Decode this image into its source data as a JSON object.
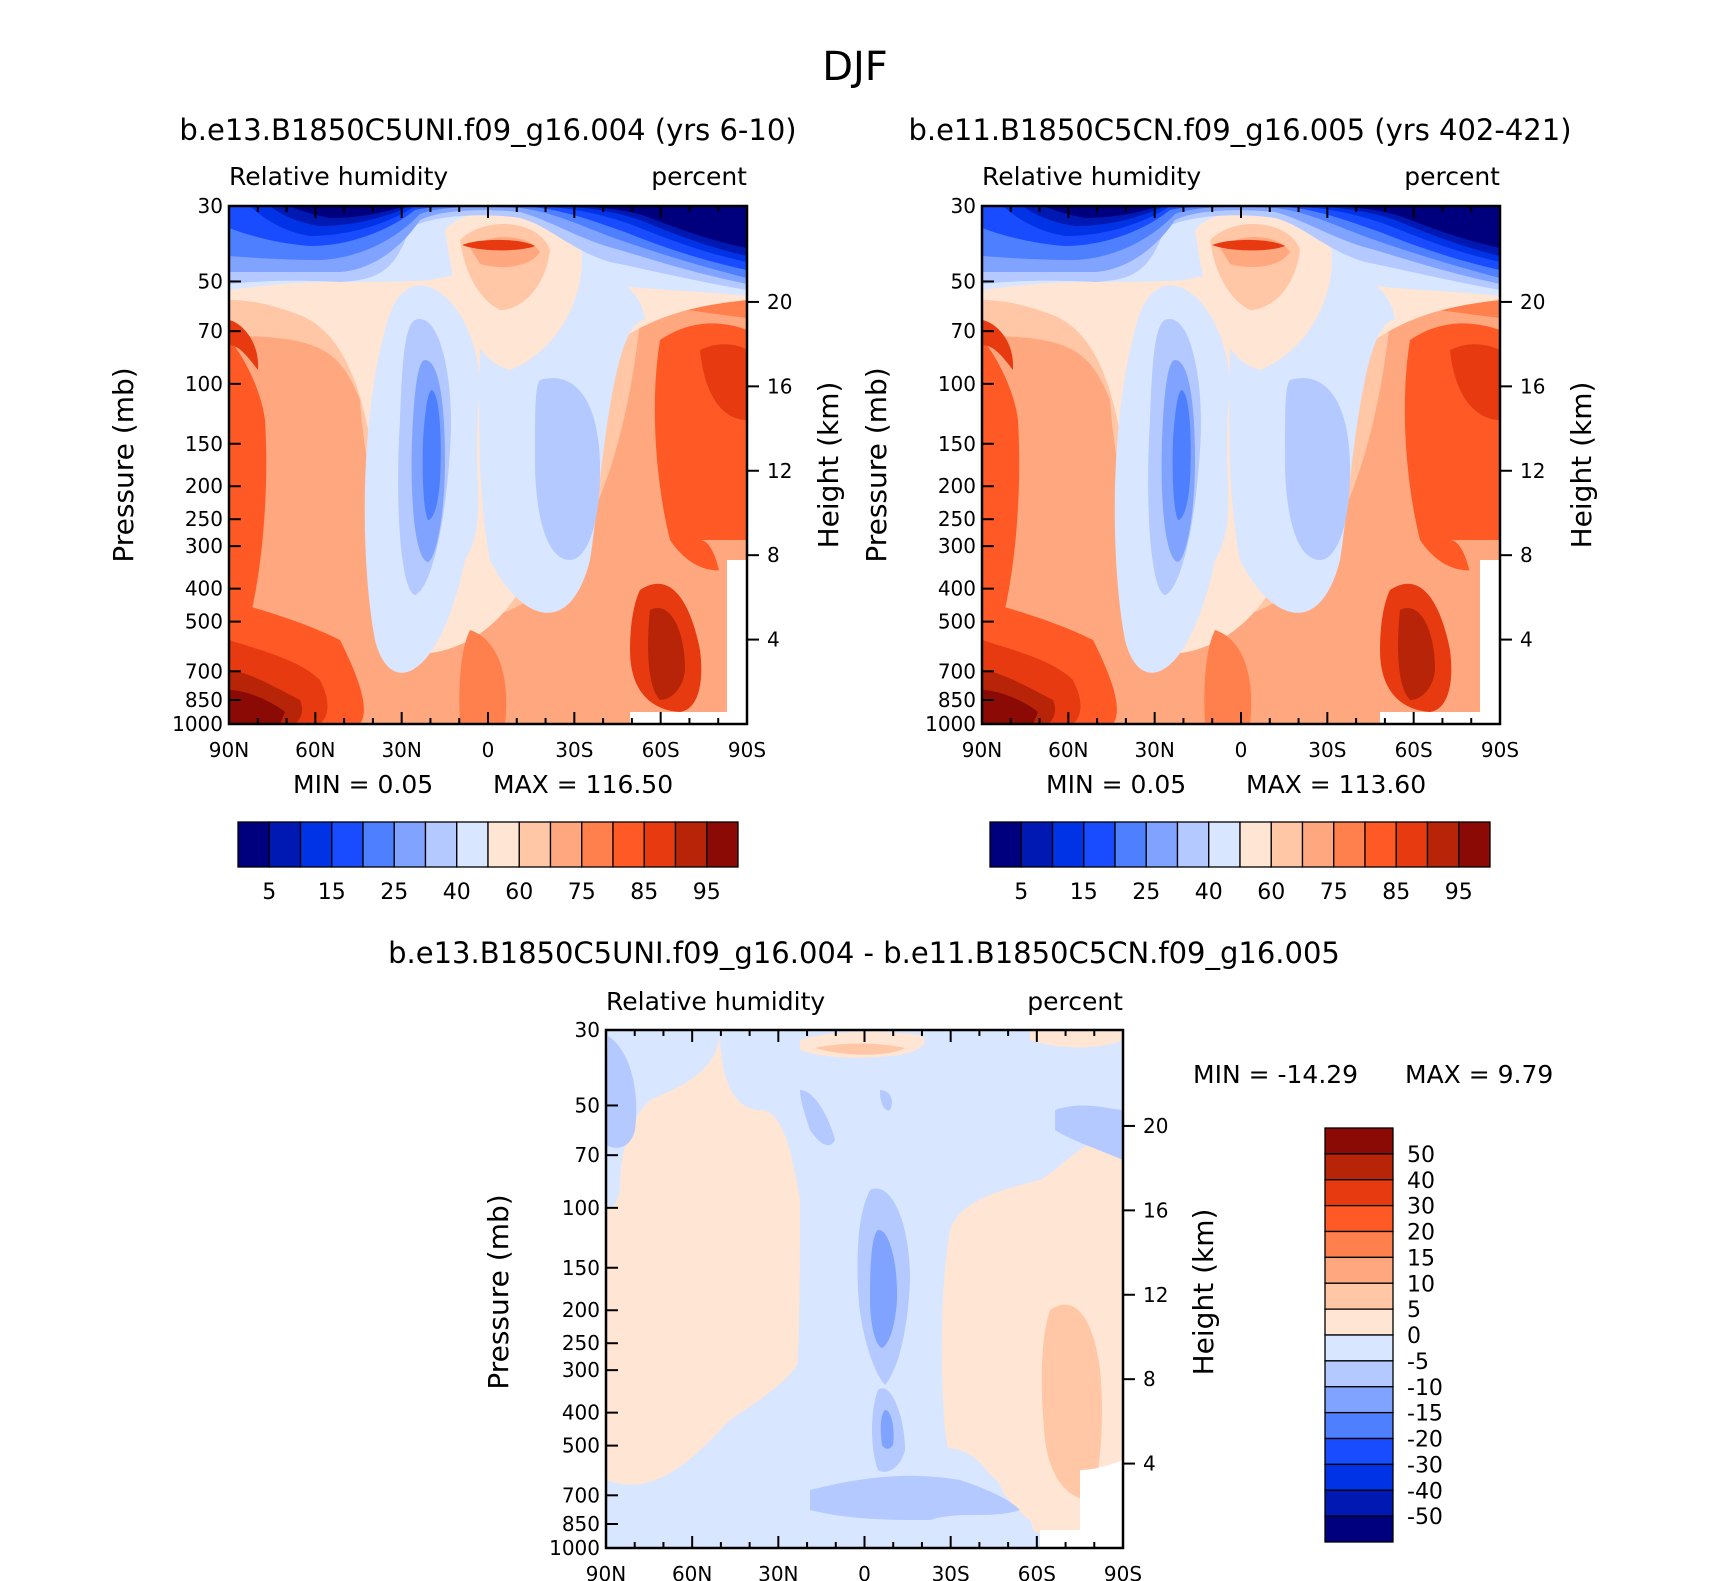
{
  "figure": {
    "title": "DJF",
    "pressure_ticks": [
      30,
      50,
      70,
      100,
      150,
      200,
      250,
      300,
      400,
      500,
      700,
      850,
      1000
    ],
    "pressure_labels": [
      "30",
      "50",
      "70",
      "100",
      "150",
      "200",
      "250",
      "300",
      "400",
      "500",
      "700",
      "850",
      "1000"
    ],
    "height_ticks": [
      20,
      16,
      12,
      8,
      4
    ],
    "height_labels": [
      "20",
      "16",
      "12",
      "8",
      "4"
    ],
    "lat_labels": [
      "90N",
      "60N",
      "30N",
      "0",
      "30S",
      "60S",
      "90S"
    ]
  },
  "chart_data": [
    {
      "type": "heatmap",
      "title": "b.e13.B1850C5UNI.f09_g16.004 (yrs 6-10)",
      "left_label": "Relative humidity",
      "right_label": "percent",
      "ylabel": "Pressure (mb)",
      "ylabel_right": "Height (km)",
      "xlim": [
        90,
        -90
      ],
      "ylim": [
        1000,
        30
      ],
      "min_text": "MIN =    0.05",
      "max_text": "MAX = 116.50",
      "colorbar_levels": [
        5,
        10,
        15,
        20,
        25,
        30,
        40,
        50,
        60,
        70,
        75,
        80,
        85,
        90,
        95
      ],
      "colorbar_labels": [
        "5",
        "15",
        "25",
        "40",
        "60",
        "75",
        "85",
        "95"
      ],
      "colors": [
        "#00007f",
        "#0019b2",
        "#0032e6",
        "#1a4cff",
        "#4d7fff",
        "#7fa3ff",
        "#b3c9ff",
        "#d9e6ff",
        "#ffe5d4",
        "#ffc7a6",
        "#ffa87f",
        "#ff7f4d",
        "#ff5a26",
        "#e83a10",
        "#b82408",
        "#8b0a05"
      ]
    },
    {
      "type": "heatmap",
      "title": "b.e11.B1850C5CN.f09_g16.005 (yrs 402-421)",
      "left_label": "Relative humidity",
      "right_label": "percent",
      "ylabel": "Pressure (mb)",
      "ylabel_right": "Height (km)",
      "xlim": [
        90,
        -90
      ],
      "ylim": [
        1000,
        30
      ],
      "min_text": "MIN =    0.05",
      "max_text": "MAX = 113.60",
      "colorbar_levels": [
        5,
        10,
        15,
        20,
        25,
        30,
        40,
        50,
        60,
        70,
        75,
        80,
        85,
        90,
        95
      ],
      "colorbar_labels": [
        "5",
        "15",
        "25",
        "40",
        "60",
        "75",
        "85",
        "95"
      ],
      "colors": [
        "#00007f",
        "#0019b2",
        "#0032e6",
        "#1a4cff",
        "#4d7fff",
        "#7fa3ff",
        "#b3c9ff",
        "#d9e6ff",
        "#ffe5d4",
        "#ffc7a6",
        "#ffa87f",
        "#ff7f4d",
        "#ff5a26",
        "#e83a10",
        "#b82408",
        "#8b0a05"
      ]
    },
    {
      "type": "heatmap",
      "title": "b.e13.B1850C5UNI.f09_g16.004 - b.e11.B1850C5CN.f09_g16.005",
      "left_label": "Relative humidity",
      "right_label": "percent",
      "ylabel": "Pressure (mb)",
      "ylabel_right": "Height (km)",
      "xlim": [
        90,
        -90
      ],
      "ylim": [
        1000,
        30
      ],
      "min_text": "MIN = -14.29",
      "max_text": "MAX =    9.79",
      "colorbar_levels": [
        -50,
        -40,
        -30,
        -20,
        -15,
        -10,
        -5,
        0,
        5,
        10,
        15,
        20,
        30,
        40,
        50
      ],
      "colorbar_labels": [
        "50",
        "40",
        "30",
        "20",
        "15",
        "10",
        "5",
        "0",
        "-5",
        "-10",
        "-15",
        "-20",
        "-30",
        "-40",
        "-50"
      ],
      "colors": [
        "#00007f",
        "#0019b2",
        "#0032e6",
        "#1a4cff",
        "#4d7fff",
        "#7fa3ff",
        "#b3c9ff",
        "#d9e6ff",
        "#ffe5d4",
        "#ffc7a6",
        "#ffa87f",
        "#ff7f4d",
        "#ff5a26",
        "#e83a10",
        "#b82408",
        "#8b0a05"
      ]
    }
  ]
}
